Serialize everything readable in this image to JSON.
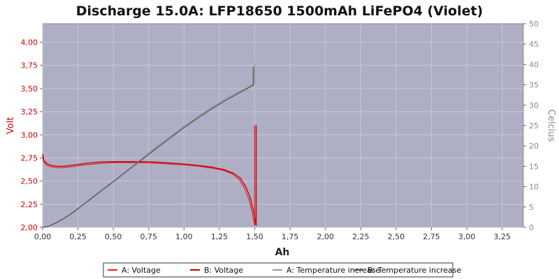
{
  "chart_data": {
    "type": "line",
    "title": "Discharge 15.0A: LFP18650 1500mAh LiFePO4 (Violet)",
    "xlabel": "Ah",
    "ylabel_left": "Volt",
    "ylabel_right": "Celcius",
    "xlim": [
      0,
      3.4
    ],
    "ylim_left": [
      2.0,
      4.2
    ],
    "ylim_right": [
      0,
      50
    ],
    "x_ticks": [
      "0,00",
      "0,25",
      "0,50",
      "0,75",
      "1,00",
      "1,25",
      "1,50",
      "1,75",
      "2,00",
      "2,25",
      "2,50",
      "2,75",
      "3,00",
      "3,25"
    ],
    "y_left_ticks": [
      "2,00",
      "2,25",
      "2,50",
      "2,75",
      "3,00",
      "3,25",
      "3,50",
      "3,75",
      "4,00"
    ],
    "y_right_ticks": [
      "0",
      "5",
      "10",
      "15",
      "20",
      "25",
      "30",
      "35",
      "40",
      "45",
      "50"
    ],
    "grid": true,
    "legend_position": "bottom",
    "colors": {
      "plot_bg": "#aeaec4",
      "grid": "#c8c8d6",
      "voltage_a": "#ee2222",
      "voltage_b": "#bb0000",
      "temp_a": "#999999",
      "temp_b": "#555555",
      "left_axis": "#cc0000",
      "right_axis": "#888888"
    },
    "series": [
      {
        "name": "A: Voltage",
        "axis": "left",
        "x": [
          0.0,
          0.01,
          0.03,
          0.06,
          0.1,
          0.15,
          0.2,
          0.3,
          0.4,
          0.5,
          0.6,
          0.7,
          0.8,
          0.9,
          1.0,
          1.1,
          1.2,
          1.28,
          1.34,
          1.39,
          1.43,
          1.46,
          1.48,
          1.495,
          1.5,
          1.5
        ],
        "y": [
          2.77,
          2.7,
          2.67,
          2.655,
          2.645,
          2.645,
          2.655,
          2.675,
          2.69,
          2.7,
          2.7,
          2.7,
          2.695,
          2.685,
          2.675,
          2.66,
          2.64,
          2.615,
          2.58,
          2.52,
          2.42,
          2.3,
          2.18,
          2.06,
          2.02,
          3.1
        ]
      },
      {
        "name": "B: Voltage",
        "axis": "left",
        "x": [
          0.0,
          0.01,
          0.03,
          0.06,
          0.1,
          0.15,
          0.2,
          0.3,
          0.4,
          0.5,
          0.6,
          0.7,
          0.8,
          0.9,
          1.0,
          1.1,
          1.2,
          1.28,
          1.35,
          1.4,
          1.44,
          1.47,
          1.49,
          1.505,
          1.51,
          1.51
        ],
        "y": [
          2.79,
          2.72,
          2.69,
          2.67,
          2.66,
          2.66,
          2.67,
          2.69,
          2.705,
          2.71,
          2.71,
          2.71,
          2.705,
          2.695,
          2.685,
          2.67,
          2.65,
          2.625,
          2.585,
          2.53,
          2.43,
          2.31,
          2.19,
          2.07,
          2.02,
          3.1
        ]
      },
      {
        "name": "A: Temperature increase",
        "axis": "right",
        "x": [
          0.0,
          0.05,
          0.1,
          0.15,
          0.2,
          0.3,
          0.4,
          0.5,
          0.6,
          0.7,
          0.8,
          0.9,
          1.0,
          1.1,
          1.2,
          1.3,
          1.4,
          1.5,
          1.5
        ],
        "y": [
          0,
          0.4,
          1.2,
          2.2,
          3.3,
          5.9,
          8.6,
          11.3,
          14.0,
          16.8,
          19.6,
          22.2,
          24.8,
          27.2,
          29.5,
          31.7,
          33.5,
          35.3,
          40.2
        ]
      },
      {
        "name": "B: Temperature increase",
        "axis": "right",
        "x": [
          0.0,
          0.05,
          0.1,
          0.15,
          0.2,
          0.3,
          0.4,
          0.5,
          0.6,
          0.7,
          0.8,
          0.9,
          1.0,
          1.1,
          1.2,
          1.3,
          1.4,
          1.49,
          1.49
        ],
        "y": [
          0,
          0.4,
          1.2,
          2.2,
          3.3,
          5.9,
          8.6,
          11.2,
          13.9,
          16.6,
          19.3,
          21.9,
          24.5,
          26.9,
          29.2,
          31.3,
          33.2,
          34.9,
          39.3
        ]
      }
    ]
  }
}
